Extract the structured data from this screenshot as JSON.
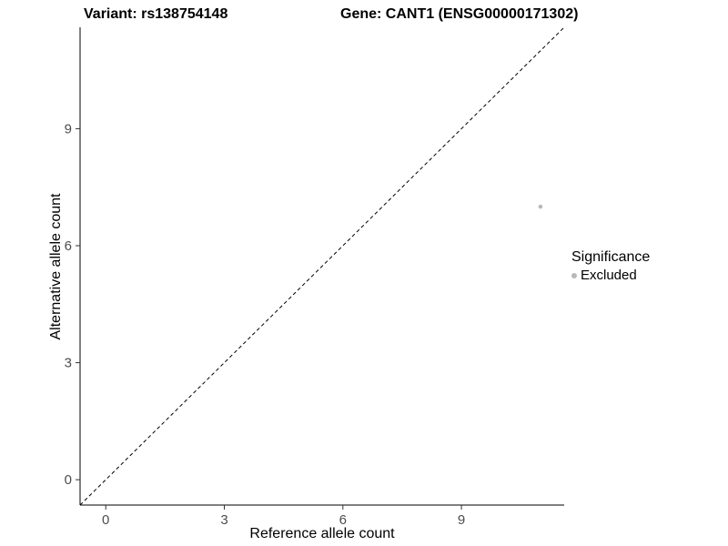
{
  "title": {
    "variant": "Variant: rs138754148",
    "gene": "Gene: CANT1 (ENSG00000171302)"
  },
  "chart_data": {
    "type": "scatter",
    "title": "Variant: rs138754148  Gene: CANT1 (ENSG00000171302)",
    "xlabel": "Reference allele count",
    "ylabel": "Alternative allele count",
    "xlim": [
      -0.65,
      11.6
    ],
    "ylim": [
      -0.65,
      11.6
    ],
    "xticks": [
      0,
      3,
      6,
      9
    ],
    "yticks": [
      0,
      3,
      6,
      9
    ],
    "grid": false,
    "identity_line": {
      "style": "dashed",
      "color": "#000000",
      "from": [
        -0.65,
        -0.65
      ],
      "to": [
        11.6,
        11.6
      ]
    },
    "series": [
      {
        "name": "Excluded",
        "color": "#b8b8b8",
        "point_radius": 2.3,
        "points": [
          {
            "x": 11,
            "y": 7
          }
        ]
      }
    ],
    "legend": {
      "position": "right",
      "title": "Significance",
      "items": [
        {
          "label": "Excluded",
          "color": "#b8b8b8"
        }
      ]
    },
    "colors": {
      "axis": "#000000",
      "tick": "#333333",
      "tick_label": "#4d4d4d",
      "excluded_point": "#b8b8b8"
    }
  }
}
